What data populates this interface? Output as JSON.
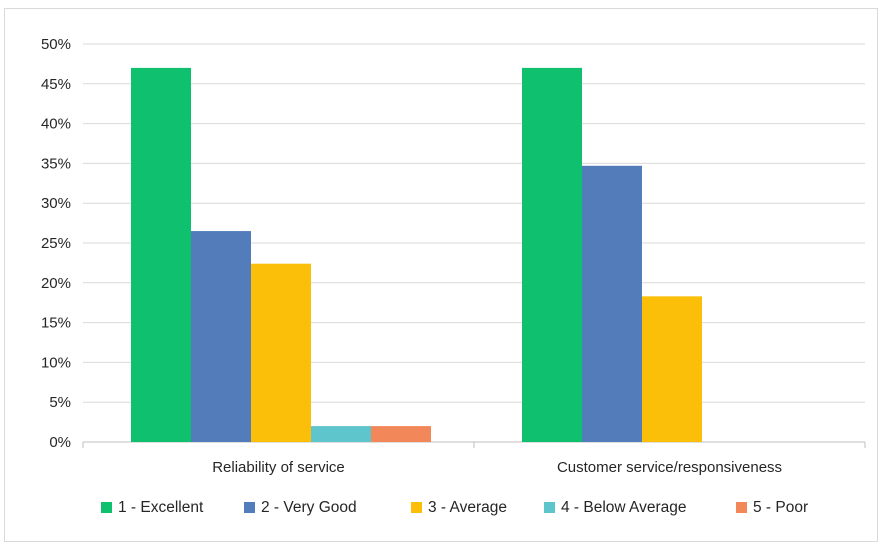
{
  "chart_data": {
    "type": "bar",
    "title": "",
    "xlabel": "",
    "ylabel": "",
    "categories": [
      "Reliability of service",
      "Customer service/responsiveness"
    ],
    "series": [
      {
        "name": "1 - Excellent",
        "color": "#0fc16e",
        "values": [
          47,
          47
        ]
      },
      {
        "name": "2 - Very Good",
        "color": "#527cba",
        "values": [
          26.5,
          34.7
        ]
      },
      {
        "name": "3 - Average",
        "color": "#fbbf0a",
        "values": [
          22.4,
          18.3
        ]
      },
      {
        "name": "4 - Below Average",
        "color": "#5fc5cc",
        "values": [
          2.0,
          0
        ]
      },
      {
        "name": "5 - Poor",
        "color": "#f2875a",
        "values": [
          2.0,
          0
        ]
      }
    ],
    "ylim": [
      0,
      50
    ],
    "yticks": [
      0,
      5,
      10,
      15,
      20,
      25,
      30,
      35,
      40,
      45,
      50
    ],
    "ytick_labels": [
      "0%",
      "5%",
      "10%",
      "15%",
      "20%",
      "25%",
      "30%",
      "35%",
      "40%",
      "45%",
      "50%"
    ],
    "grid": true,
    "legend_position": "bottom",
    "gridline_color": "#d9d9d9",
    "axis_color": "#bfbfbf"
  }
}
